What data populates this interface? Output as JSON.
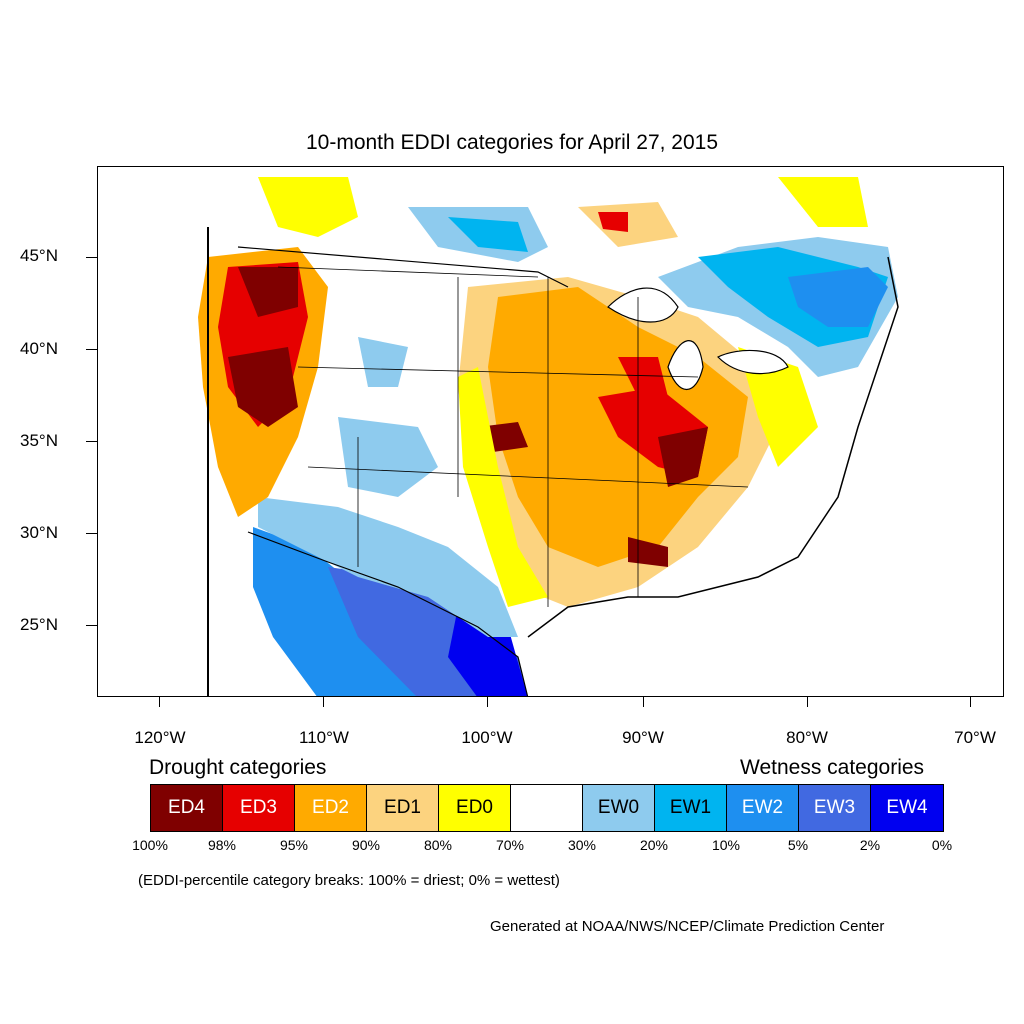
{
  "title": "10-month EDDI categories for April 27, 2015",
  "axes": {
    "lat_labels": [
      "45°N",
      "40°N",
      "35°N",
      "30°N",
      "25°N"
    ],
    "lon_labels": [
      "120°W",
      "110°W",
      "100°W",
      "90°W",
      "80°W",
      "70°W"
    ]
  },
  "legend": {
    "drought_heading": "Drought categories",
    "wetness_heading": "Wetness categories",
    "categories": [
      {
        "label": "ED4",
        "color": "#7f0000",
        "text_color": "#ffffff"
      },
      {
        "label": "ED3",
        "color": "#e60000",
        "text_color": "#ffffff"
      },
      {
        "label": "ED2",
        "color": "#ffaa00",
        "text_color": "#ffffff"
      },
      {
        "label": "ED1",
        "color": "#fcd37f",
        "text_color": "#000000"
      },
      {
        "label": "ED0",
        "color": "#ffff00",
        "text_color": "#000000"
      },
      {
        "label": "",
        "color": "#ffffff",
        "text_color": "#000000"
      },
      {
        "label": "EW0",
        "color": "#8ecbee",
        "text_color": "#000000"
      },
      {
        "label": "EW1",
        "color": "#00b4f0",
        "text_color": "#000000"
      },
      {
        "label": "EW2",
        "color": "#1e8ff0",
        "text_color": "#ffffff"
      },
      {
        "label": "EW3",
        "color": "#4169e1",
        "text_color": "#ffffff"
      },
      {
        "label": "EW4",
        "color": "#0000f0",
        "text_color": "#ffffff"
      }
    ],
    "breaks": [
      "100%",
      "98%",
      "95%",
      "90%",
      "80%",
      "70%",
      "30%",
      "20%",
      "10%",
      "5%",
      "2%",
      "0%"
    ]
  },
  "note": "(EDDI-percentile category breaks: 100% = driest; 0% = wettest)",
  "credit": "Generated at NOAA/NWS/NCEP/Climate Prediction Center"
}
